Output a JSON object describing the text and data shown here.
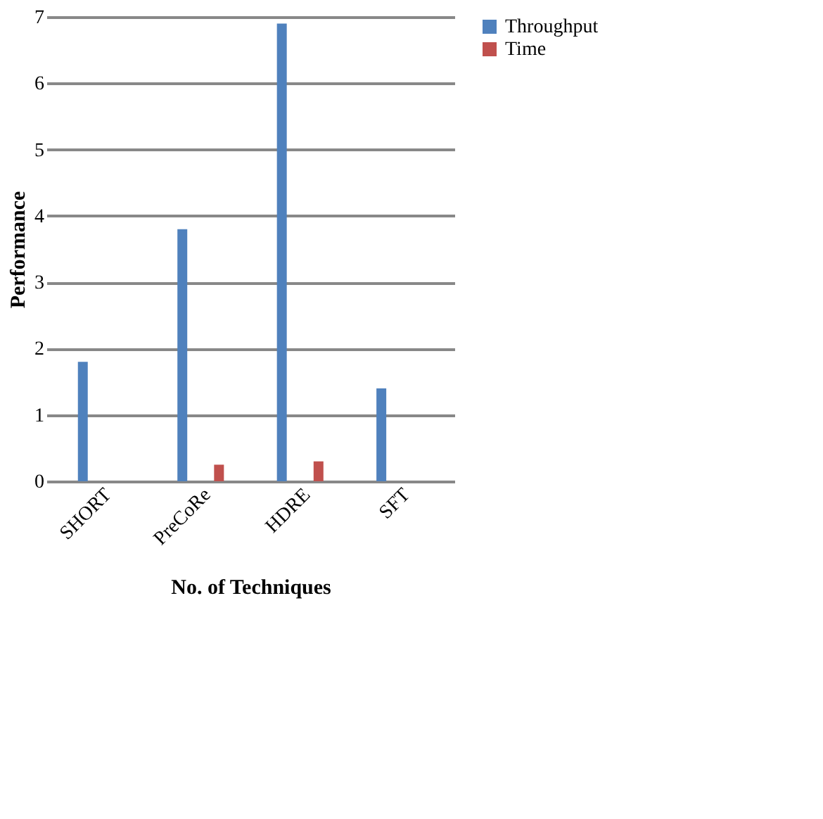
{
  "chart_data": {
    "type": "bar",
    "xlabel": "No. of Techniques",
    "ylabel": "Performance",
    "categories": [
      "SHORT",
      "PreCoRe",
      "HDRE",
      "SFT"
    ],
    "series": [
      {
        "name": "Throughput",
        "color": "#4f81bd",
        "values": [
          1.8,
          3.8,
          6.9,
          1.4
        ]
      },
      {
        "name": "Time",
        "color": "#c0504d",
        "values": [
          0,
          0.25,
          0.3,
          0
        ]
      }
    ],
    "ylim": [
      0,
      7
    ],
    "yticks": [
      0,
      1,
      2,
      3,
      4,
      5,
      6,
      7
    ],
    "grid": "y",
    "legend": "right"
  }
}
